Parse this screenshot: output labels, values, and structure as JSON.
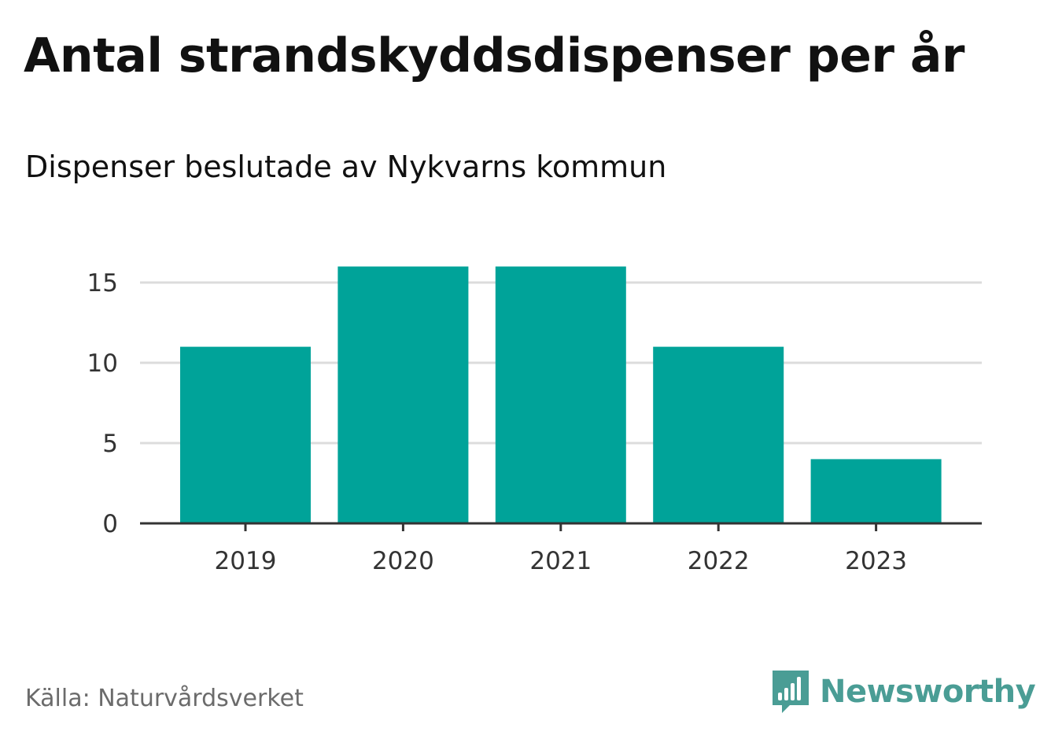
{
  "header": {
    "title": "Antal strandskyddsdispenser per år",
    "subtitle": "Dispenser beslutade av Nykvarns kommun"
  },
  "footer": {
    "source": "Källa: Naturvårdsverket",
    "brand": "Newsworthy"
  },
  "colors": {
    "bar": "#00a399",
    "grid": "#dcdcdc",
    "axis": "#333333",
    "brand": "#4a9d95"
  },
  "icons": {
    "brand_logo": "bar-chart-speech-bubble-icon"
  },
  "chart_data": {
    "type": "bar",
    "title": "Antal strandskyddsdispenser per år",
    "subtitle": "Dispenser beslutade av Nykvarns kommun",
    "xlabel": "",
    "ylabel": "",
    "categories": [
      "2019",
      "2020",
      "2021",
      "2022",
      "2023"
    ],
    "values": [
      11,
      16,
      16,
      11,
      4
    ],
    "ylim": [
      0,
      16
    ],
    "yticks": [
      0,
      5,
      10,
      15
    ],
    "grid": true,
    "legend": "none"
  }
}
